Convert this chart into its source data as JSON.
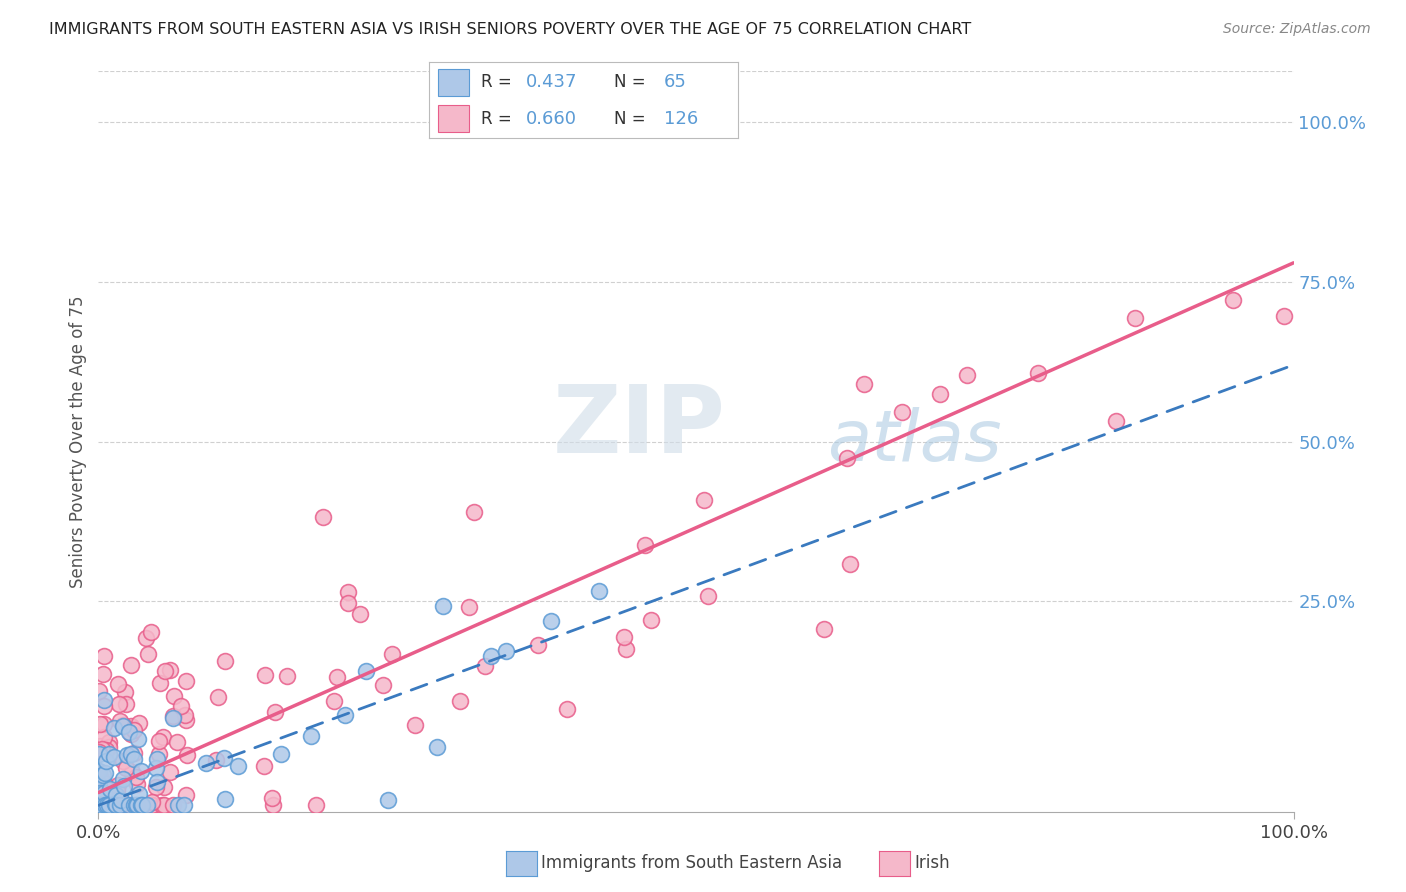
{
  "title": "IMMIGRANTS FROM SOUTH EASTERN ASIA VS IRISH SENIORS POVERTY OVER THE AGE OF 75 CORRELATION CHART",
  "source": "Source: ZipAtlas.com",
  "ylabel": "Seniors Poverty Over the Age of 75",
  "xlim": [
    0.0,
    1.0
  ],
  "ylim": [
    -0.08,
    1.08
  ],
  "x_tick_labels": [
    "0.0%",
    "100.0%"
  ],
  "x_tick_positions": [
    0.0,
    1.0
  ],
  "right_y_tick_labels": [
    "25.0%",
    "50.0%",
    "75.0%",
    "100.0%"
  ],
  "right_y_tick_positions": [
    0.25,
    0.5,
    0.75,
    1.0
  ],
  "blue_R": "0.437",
  "blue_N": "65",
  "pink_R": "0.660",
  "pink_N": "126",
  "blue_color": "#aec8e8",
  "blue_edge_color": "#5b9bd5",
  "pink_color": "#f5b8ca",
  "pink_edge_color": "#e85d8a",
  "blue_line_color": "#3a7abf",
  "pink_line_color": "#e85d8a",
  "blue_trend": [
    0.0,
    1.0,
    -0.07,
    0.62
  ],
  "pink_trend": [
    0.0,
    1.0,
    -0.05,
    0.78
  ],
  "watermark_zip": "ZIP",
  "watermark_atlas": "atlas",
  "background_color": "#ffffff",
  "grid_color": "#d0d0d0",
  "title_color": "#222222",
  "right_tick_color": "#5b9bd5",
  "legend_R_N_color": "#5b9bd5",
  "bottom_legend_color": "#444444"
}
